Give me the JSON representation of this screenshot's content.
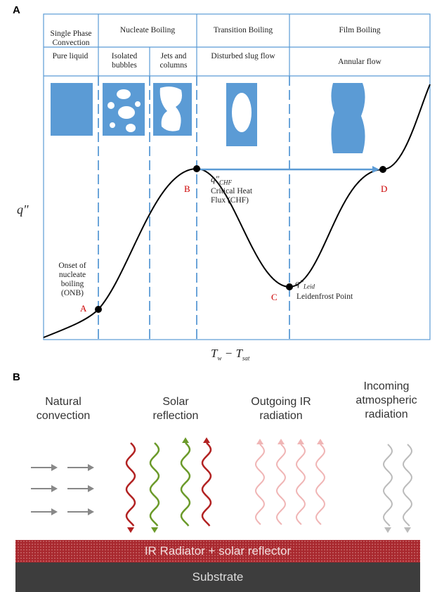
{
  "panel_a": {
    "label": "A",
    "phases": [
      "Single Phase Convection",
      "Nucleate Boiling",
      "Transition Boiling",
      "Film Boiling"
    ],
    "regimes": [
      "Pure liquid",
      "Isolated bubbles",
      "Jets and columns",
      "Disturbed slug flow",
      "Annular flow"
    ],
    "y_label": "q\"",
    "x_label": {
      "main": "T",
      "sub1": "w",
      "minus": " − T",
      "sub2": "sat"
    },
    "points": [
      "A",
      "B",
      "C",
      "D"
    ],
    "onb": "Onset of nucleate boiling (ONB)",
    "chf_symbol": {
      "main": "q\"",
      "sub": "CHF"
    },
    "chf": "Critical Heat Flux (CHF)",
    "leid_symbol": {
      "main": "q\"",
      "sub": "Leid"
    },
    "leid": "Leidenfrost Point"
  },
  "panel_b": {
    "label": "B",
    "natural": "Natural convection",
    "solar": "Solar reflection",
    "outgoing": "Outgoing IR radiation",
    "incoming": "Incoming atmospheric radiation",
    "radiator": "IR Radiator + solar reflector",
    "substrate": "Substrate"
  }
}
